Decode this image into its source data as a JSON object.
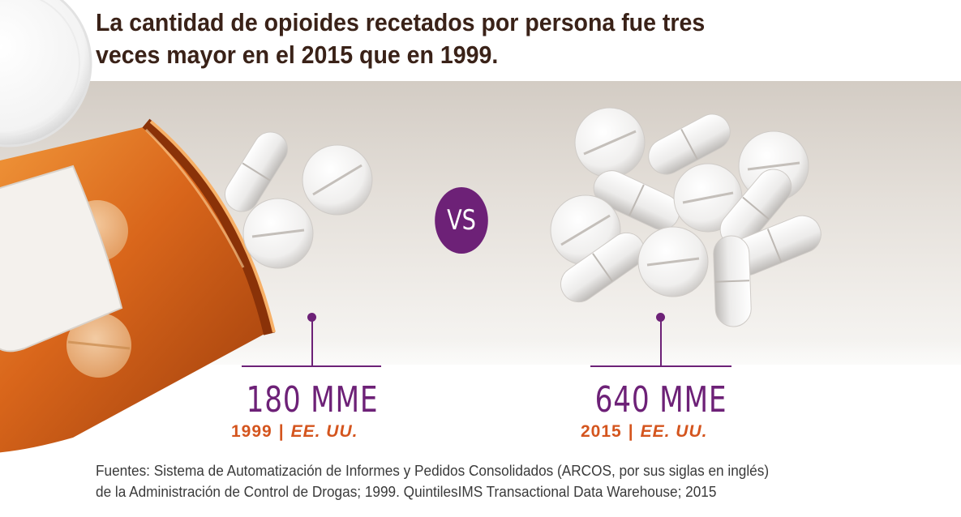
{
  "title": {
    "line1": "La cantidad de opioides recetados por persona fue tres",
    "line2": "veces mayor en el 2015 que en 1999."
  },
  "vs_label": "VS",
  "comparison": [
    {
      "value": "180 MME",
      "year": "1999",
      "separator": "|",
      "country": "EE. UU."
    },
    {
      "value": "640 MME",
      "year": "2015",
      "separator": "|",
      "country": "EE. UU."
    }
  ],
  "source": {
    "line1": "Fuentes: Sistema de Automatización de Informes y Pedidos Consolidados (ARCOS, por sus siglas en inglés)",
    "line2": "de la Administración de Control de Drogas; 1999. QuintilesIMS Transactional Data Warehouse; 2015"
  },
  "colors": {
    "title": "#3a2218",
    "accent_purple": "#6d2177",
    "accent_orange": "#d4551e",
    "bottle_orange": "#d4651a"
  },
  "icons": [
    "pill-bottle-icon",
    "pill-icon"
  ]
}
